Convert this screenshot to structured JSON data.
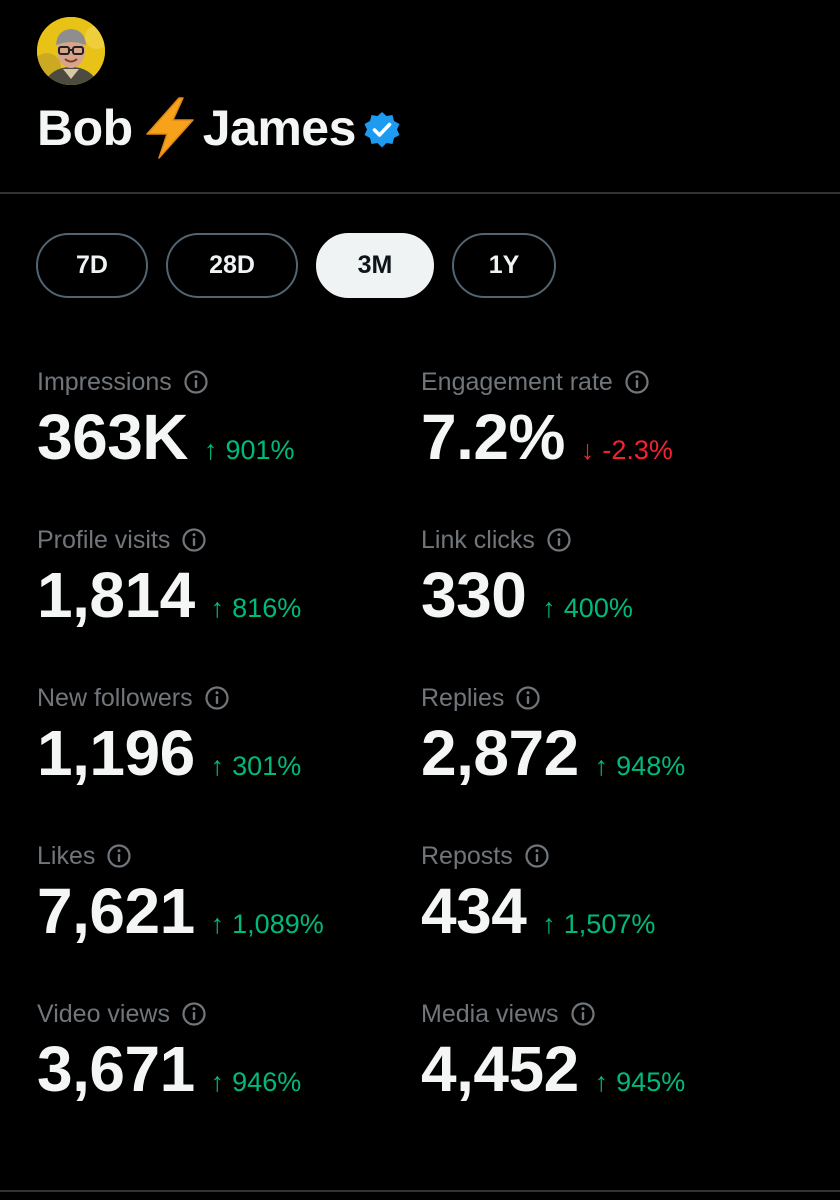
{
  "profile": {
    "name_first": "Bob",
    "name_last": "James",
    "name_emoji": "lightning-bolt-emoji",
    "verified": true,
    "verified_color": "#1d9bf0"
  },
  "filters": {
    "selected": "3M",
    "items": [
      {
        "label": "7D"
      },
      {
        "label": "28D"
      },
      {
        "label": "3M"
      },
      {
        "label": "1Y"
      }
    ]
  },
  "metrics": [
    {
      "label": "Impressions",
      "value": "363K",
      "change": "901%",
      "direction": "up"
    },
    {
      "label": "Engagement rate",
      "value": "7.2%",
      "change": "-2.3%",
      "direction": "down"
    },
    {
      "label": "Profile visits",
      "value": "1,814",
      "change": "816%",
      "direction": "up"
    },
    {
      "label": "Link clicks",
      "value": "330",
      "change": "400%",
      "direction": "up"
    },
    {
      "label": "New followers",
      "value": "1,196",
      "change": "301%",
      "direction": "up"
    },
    {
      "label": "Replies",
      "value": "2,872",
      "change": "948%",
      "direction": "up"
    },
    {
      "label": "Likes",
      "value": "7,621",
      "change": "1,089%",
      "direction": "up"
    },
    {
      "label": "Reposts",
      "value": "434",
      "change": "1,507%",
      "direction": "up"
    },
    {
      "label": "Video views",
      "value": "3,671",
      "change": "946%",
      "direction": "up"
    },
    {
      "label": "Media views",
      "value": "4,452",
      "change": "945%",
      "direction": "up"
    }
  ],
  "colors": {
    "positive": "#00ba7c",
    "negative": "#f4212e",
    "label": "#71767b",
    "background": "#000000"
  }
}
